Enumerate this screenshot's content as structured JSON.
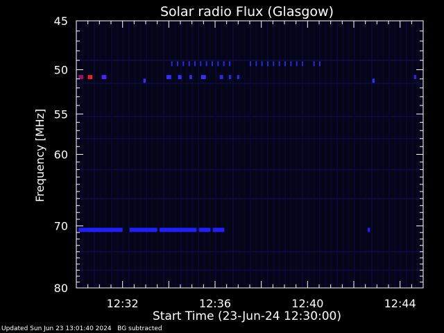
{
  "chart_data": {
    "type": "heatmap",
    "title": "Solar radio Flux (Glasgow)",
    "xlabel": "Start Time (23-Jun-24 12:30:00)",
    "ylabel": "Frequency [MHz]",
    "x_ticks": [
      "12:32",
      "12:36",
      "12:40",
      "12:44"
    ],
    "x_tick_minutes": [
      2,
      6,
      10,
      14
    ],
    "xlim_minutes": [
      0,
      15
    ],
    "y_ticks": [
      45,
      50,
      55,
      60,
      70,
      80
    ],
    "ylim": [
      45,
      80
    ],
    "y_scale": "log",
    "bands": [
      {
        "y": 70.6,
        "x0": 0.1,
        "x1": 0.9,
        "color": "#2020ff"
      },
      {
        "y": 70.6,
        "x0": 0.9,
        "x1": 2.0,
        "color": "#2020ff"
      },
      {
        "y": 70.6,
        "x0": 2.3,
        "x1": 3.5,
        "color": "#2020ff"
      },
      {
        "y": 70.6,
        "x0": 3.6,
        "x1": 5.2,
        "color": "#2020ff"
      },
      {
        "y": 70.6,
        "x0": 5.3,
        "x1": 5.8,
        "color": "#2020ff"
      },
      {
        "y": 70.6,
        "x0": 5.9,
        "x1": 6.4,
        "color": "#2020ff"
      },
      {
        "y": 70.6,
        "x0": 12.6,
        "x1": 12.7,
        "color": "#2020ff"
      },
      {
        "y": 50.8,
        "x0": 0.1,
        "x1": 0.3,
        "color": "#a01070"
      },
      {
        "y": 50.8,
        "x0": 0.5,
        "x1": 0.55,
        "color": "#ff2020"
      },
      {
        "y": 50.8,
        "x0": 0.6,
        "x1": 0.65,
        "color": "#ff2020"
      },
      {
        "y": 50.8,
        "x0": 1.1,
        "x1": 1.3,
        "color": "#5020ff"
      },
      {
        "y": 51.2,
        "x0": 2.9,
        "x1": 3.0,
        "color": "#3030ff"
      },
      {
        "y": 50.8,
        "x0": 3.9,
        "x1": 4.1,
        "color": "#3030ff"
      },
      {
        "y": 50.8,
        "x0": 4.4,
        "x1": 4.55,
        "color": "#3030ff"
      },
      {
        "y": 50.8,
        "x0": 4.9,
        "x1": 5.0,
        "color": "#3030ff"
      },
      {
        "y": 50.8,
        "x0": 5.4,
        "x1": 5.6,
        "color": "#3030ff"
      },
      {
        "y": 50.8,
        "x0": 6.2,
        "x1": 6.35,
        "color": "#2828e0"
      },
      {
        "y": 50.8,
        "x0": 6.6,
        "x1": 6.7,
        "color": "#2828e0"
      },
      {
        "y": 50.8,
        "x0": 6.95,
        "x1": 7.05,
        "color": "#2828e0"
      },
      {
        "y": 51.2,
        "x0": 12.8,
        "x1": 12.9,
        "color": "#3030ff"
      },
      {
        "y": 50.8,
        "x0": 14.6,
        "x1": 14.7,
        "color": "#2828e0"
      }
    ],
    "ticks_row": {
      "y": 49.4,
      "color": "#2828e0",
      "x": [
        4.1,
        4.35,
        4.6,
        4.85,
        5.1,
        5.35,
        5.6,
        5.85,
        6.1,
        6.35,
        6.6,
        7.5,
        7.75,
        8.0,
        8.25,
        8.5,
        8.75,
        9.0,
        9.25,
        9.5,
        9.75,
        10.25,
        10.5
      ]
    },
    "faint_rows": [
      55.3,
      49.0,
      51.5,
      58.0,
      62.0,
      66.0,
      74.0,
      77.0
    ]
  },
  "footer": {
    "updated": "Updated Sun Jun 23 13:01:40 2024",
    "note": "BG subtracted"
  }
}
